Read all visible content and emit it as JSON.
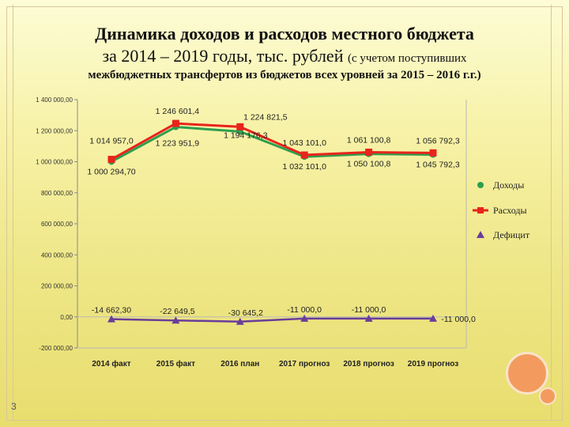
{
  "title": {
    "line1": "Динамика доходов и расходов местного бюджета",
    "line2_main": "за 2014 – 2019 годы, тыс. рублей",
    "line2_note": "(с учетом поступивших",
    "line3": "межбюджетных трансфертов из бюджетов всех уровней за 2015 – 2016 г.г.)"
  },
  "page_number": "3",
  "chart_data": {
    "type": "line",
    "categories": [
      "2014 факт",
      "2015 факт",
      "2016 план",
      "2017 прогноз",
      "2018 прогноз",
      "2019 прогноз"
    ],
    "ylim": [
      -200000,
      1400000
    ],
    "y_ticks": [
      -200000,
      0,
      200000,
      400000,
      600000,
      800000,
      1000000,
      1200000,
      1400000
    ],
    "y_tick_labels": [
      "-200 000,00",
      "0,00",
      "200 000,00",
      "400 000,00",
      "600 000,00",
      "800 000,00",
      "1 000 000,00",
      "1 200 000,00",
      "1 400 000,00"
    ],
    "series": [
      {
        "name": "Доходы",
        "color": "#2e9e4f",
        "marker": "circle",
        "values": [
          1000294.7,
          1223951.9,
          1194176.3,
          1032101.0,
          1050100.8,
          1045792.3
        ],
        "labels": [
          "1 000 294,70",
          "1 223 951,9",
          "1 194 176,3",
          "1 032 101,0",
          "1 050 100,8",
          "1 045 792,3"
        ]
      },
      {
        "name": "Расходы",
        "color": "#e8241c",
        "marker": "square",
        "values": [
          1014957.0,
          1246601.4,
          1224821.5,
          1043101.0,
          1061100.8,
          1056792.3
        ],
        "labels": [
          "1 014 957,0",
          "1 246 601,4",
          "1 224 821,5",
          "1 043 101,0",
          "1 061 100,8",
          "1 056 792,3"
        ]
      },
      {
        "name": "Дефицит",
        "color": "#6a3d9a",
        "marker": "triangle",
        "values": [
          -14662.3,
          -22649.5,
          -30645.2,
          -11000.0,
          -11000.0,
          -11000.0
        ],
        "labels": [
          "-14 662,30",
          "-22 649,5",
          "-30 645,2",
          "-11 000,0",
          "-11 000,0",
          "-11 000,0"
        ]
      }
    ],
    "legend_position": "right",
    "grid": false
  }
}
